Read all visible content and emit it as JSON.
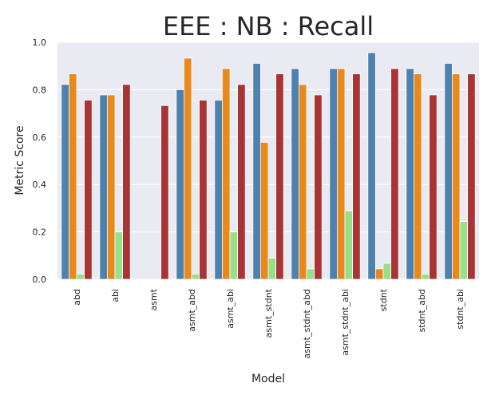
{
  "chart_data": {
    "type": "bar",
    "title": "EEE : NB : Recall",
    "xlabel": "Model",
    "ylabel": "Metric Score",
    "ylim": [
      0,
      1.0
    ],
    "yticks": [
      "0.0",
      "0.2",
      "0.4",
      "0.6",
      "0.8",
      "1.0"
    ],
    "grid": true,
    "legend": "none",
    "categories": [
      "abd",
      "abi",
      "asmt",
      "asmt_abd",
      "asmt_abi",
      "asmt_stdnt",
      "asmt_stdnt_abd",
      "asmt_stdnt_abi",
      "stdnt",
      "stdnt_abd",
      "stdnt_abi"
    ],
    "series": [
      {
        "color": "#4e81ad",
        "values": [
          0.822,
          0.778,
          0.0,
          0.8,
          0.756,
          0.911,
          0.889,
          0.889,
          0.956,
          0.889,
          0.911
        ]
      },
      {
        "color": "#e8891d",
        "values": [
          0.867,
          0.778,
          0.0,
          0.933,
          0.889,
          0.578,
          0.822,
          0.889,
          0.044,
          0.867,
          0.867
        ]
      },
      {
        "color": "#98df8a",
        "values": [
          0.022,
          0.2,
          0.0,
          0.022,
          0.2,
          0.089,
          0.044,
          0.289,
          0.067,
          0.022,
          0.244
        ]
      },
      {
        "color": "#a83436",
        "values": [
          0.756,
          0.822,
          0.733,
          0.756,
          0.822,
          0.867,
          0.778,
          0.867,
          0.889,
          0.778,
          0.867
        ]
      }
    ]
  }
}
